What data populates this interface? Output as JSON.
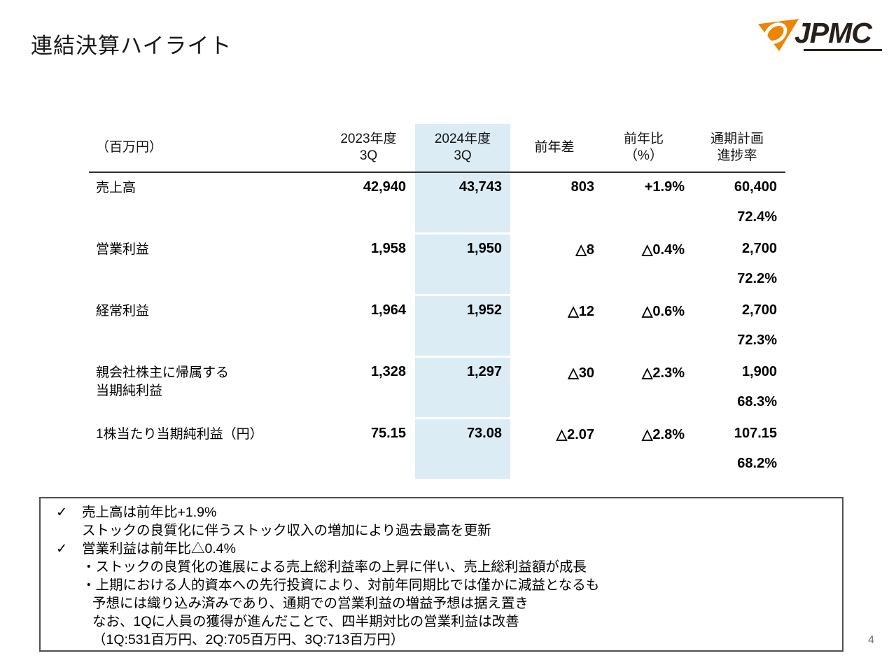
{
  "page": {
    "title": "連結決算ハイライト",
    "logo_text": "JPMC",
    "page_number": "4"
  },
  "colors": {
    "highlight_column": "#dbecf4",
    "logo_orange": "#ed8500",
    "logo_dark": "#29201b",
    "header_rule": "#2f2f2f",
    "notes_border": "#4f4f4f",
    "page_number_gray": "#757575"
  },
  "table": {
    "unit_label": "（百万円）",
    "headers": [
      {
        "line1": "2023年度",
        "line2": "3Q"
      },
      {
        "line1": "2024年度",
        "line2": "3Q"
      },
      {
        "line1": "前年差",
        "line2": ""
      },
      {
        "line1": "前年比",
        "line2": "（%）"
      },
      {
        "line1": "通期計画",
        "line2": "進捗率"
      }
    ],
    "rows": [
      {
        "label": "売上高",
        "label2": "",
        "fy2023": "42,940",
        "fy2024": "43,743",
        "diff": "803",
        "yoy": "+1.9%",
        "plan": "60,400",
        "progress": "72.4%"
      },
      {
        "label": "営業利益",
        "label2": "",
        "fy2023": "1,958",
        "fy2024": "1,950",
        "diff": "△8",
        "yoy": "△0.4%",
        "plan": "2,700",
        "progress": "72.2%"
      },
      {
        "label": "経常利益",
        "label2": "",
        "fy2023": "1,964",
        "fy2024": "1,952",
        "diff": "△12",
        "yoy": "△0.6%",
        "plan": "2,700",
        "progress": "72.3%"
      },
      {
        "label": "親会社株主に帰属する",
        "label2": "当期純利益",
        "fy2023": "1,328",
        "fy2024": "1,297",
        "diff": "△30",
        "yoy": "△2.3%",
        "plan": "1,900",
        "progress": "68.3%"
      },
      {
        "label": "1株当たり当期純利益（円）",
        "label2": "",
        "fy2023": "75.15",
        "fy2024": "73.08",
        "diff": "△2.07",
        "yoy": "△2.8%",
        "plan": "107.15",
        "progress": "68.2%"
      }
    ]
  },
  "notes": {
    "items": [
      {
        "marker": "✓",
        "text": "売上高は前年比+1.9%"
      },
      {
        "marker": "",
        "text": "ストックの良質化に伴うストック収入の増加により過去最高を更新"
      },
      {
        "marker": "✓",
        "text": "営業利益は前年比△0.4%"
      },
      {
        "marker": "",
        "text": "・ストックの良質化の進展による売上総利益率の上昇に伴い、売上総利益額が成長"
      },
      {
        "marker": "",
        "text": "・上期における人的資本への先行投資により、対前年同期比では僅かに減益となるも"
      },
      {
        "marker": "",
        "text": "予想には織り込み済みであり、通期での営業利益の増益予想は据え置き"
      },
      {
        "marker": "",
        "text": "なお、1Qに人員の獲得が進んだことで、四半期対比の営業利益は改善"
      },
      {
        "marker": "",
        "text": "（1Q:531百万円、2Q:705百万円、3Q:713百万円）"
      }
    ]
  }
}
